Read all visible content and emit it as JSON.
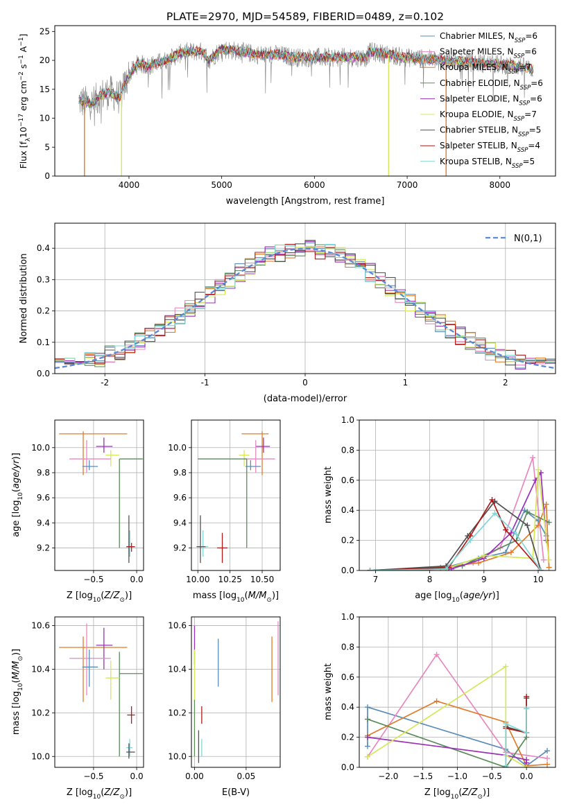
{
  "title": "PLATE=2970, MJD=54589, FIBERID=0489, z=0.102",
  "colors": {
    "Chabrier MILES": "#5b8db8",
    "Salpeter MILES": "#e887c0",
    "Kroupa MILES": "#e07b2a",
    "Chabrier ELODIE": "#5a8a5a",
    "Salpeter ELODIE": "#9a2fb8",
    "Kroupa ELODIE": "#d4e85a",
    "Chabrier STELIB": "#505050",
    "Salpeter STELIB": "#b01818",
    "Kroupa STELIB": "#7fd6d6",
    "normal": "#5a8ad6",
    "grid": "#b0b0b0"
  },
  "legend_spectrum": [
    {
      "model": "Chabrier MILES",
      "label": "Chabrier MILES, N",
      "sub": "SSP",
      "tail": "=6"
    },
    {
      "model": "Salpeter MILES",
      "label": "Salpeter MILES, N",
      "sub": "SSP",
      "tail": "=6"
    },
    {
      "model": "Kroupa MILES",
      "label": "Kroupa MILES, N",
      "sub": "SSP",
      "tail": "=7"
    },
    {
      "model": "Chabrier ELODIE",
      "label": "Chabrier ELODIE, N",
      "sub": "SSP",
      "tail": "=6"
    },
    {
      "model": "Salpeter ELODIE",
      "label": "Salpeter ELODIE, N",
      "sub": "SSP",
      "tail": "=6"
    },
    {
      "model": "Kroupa ELODIE",
      "label": "Kroupa ELODIE, N",
      "sub": "SSP",
      "tail": "=7"
    },
    {
      "model": "Chabrier STELIB",
      "label": "Chabrier STELIB, N",
      "sub": "SSP",
      "tail": "=5"
    },
    {
      "model": "Salpeter STELIB",
      "label": "Salpeter STELIB, N",
      "sub": "SSP",
      "tail": "=4"
    },
    {
      "model": "Kroupa STELIB",
      "label": "Kroupa STELIB, N",
      "sub": "SSP",
      "tail": "=5"
    }
  ],
  "chart_data": [
    {
      "id": "spectrum",
      "type": "line",
      "xlabel": "wavelength [Angstrom, rest frame]",
      "ylabel": "Flux [fλ10⁻¹⁷ erg cm⁻² s⁻¹ A⁻¹]",
      "xlim": [
        3200,
        8600
      ],
      "ylim": [
        0,
        26
      ],
      "xticks": [
        4000,
        5000,
        6000,
        7000,
        8000
      ],
      "yticks": [
        0,
        5,
        10,
        15,
        20,
        25
      ],
      "grid": false,
      "legend": "right",
      "continuum": [
        [
          3460,
          13
        ],
        [
          3600,
          12.5
        ],
        [
          3700,
          14
        ],
        [
          3800,
          14.5
        ],
        [
          3900,
          13.5
        ],
        [
          4000,
          17.5
        ],
        [
          4100,
          19.5
        ],
        [
          4200,
          19
        ],
        [
          4400,
          20
        ],
        [
          4600,
          21.5
        ],
        [
          4800,
          21.5
        ],
        [
          4860,
          20
        ],
        [
          5000,
          22
        ],
        [
          5200,
          21.5
        ],
        [
          5400,
          21
        ],
        [
          5600,
          21
        ],
        [
          5800,
          20.5
        ],
        [
          6000,
          20.5
        ],
        [
          6300,
          20.5
        ],
        [
          6560,
          20.5
        ],
        [
          6600,
          21.5
        ],
        [
          7000,
          20.5
        ],
        [
          7400,
          20
        ],
        [
          7800,
          19.5
        ],
        [
          8200,
          19
        ],
        [
          8360,
          18.5
        ]
      ],
      "drops": [
        {
          "model": "Kroupa MILES",
          "x": 3520
        },
        {
          "model": "Kroupa ELODIE",
          "x": 3920
        },
        {
          "model": "Kroupa ELODIE",
          "x": 6800
        },
        {
          "model": "Kroupa MILES",
          "x": 7420
        }
      ]
    },
    {
      "id": "residuals",
      "type": "histogram",
      "xlabel": "(data-model)/error",
      "ylabel": "Normed distribution",
      "xlim": [
        -2.5,
        2.5
      ],
      "ylim": [
        0,
        0.48
      ],
      "xticks": [
        -2,
        -1,
        0,
        1,
        2
      ],
      "yticks": [
        0.0,
        0.1,
        0.2,
        0.3,
        0.4
      ],
      "grid": true,
      "legend": "top-right",
      "legend_label": "N(0,1)",
      "bins": [
        -2.5,
        2.5,
        50
      ]
    },
    {
      "id": "age_vs_Z",
      "type": "scatter",
      "xlabel": "Z [log10(Z/Z☉)]",
      "ylabel": "age  [log10(age/yr)]",
      "xlim": [
        -0.95,
        0.08
      ],
      "ylim": [
        9.02,
        10.22
      ],
      "xticks": [
        -0.5,
        0.0
      ],
      "xticklabels": [
        "−0.5",
        "0.0"
      ],
      "yticks": [
        9.2,
        9.4,
        9.6,
        9.8,
        10.0
      ],
      "yticklabels": [
        "9.2",
        "9.4",
        "9.6",
        "9.8",
        "10.0"
      ],
      "grid": true,
      "points": [
        {
          "model": "Kroupa MILES",
          "x": -0.62,
          "xl": -0.9,
          "xh": -0.11,
          "y": 10.11,
          "yl": 9.78,
          "yh": 10.13
        },
        {
          "model": "Salpeter ELODIE",
          "x": -0.38,
          "xl": -0.47,
          "xh": -0.28,
          "y": 10.01,
          "yl": 9.96,
          "yh": 10.08
        },
        {
          "model": "Kroupa ELODIE",
          "x": -0.3,
          "xl": -0.36,
          "xh": -0.2,
          "y": 9.94,
          "yl": 9.85,
          "yh": 9.98
        },
        {
          "model": "Salpeter MILES",
          "x": -0.58,
          "xl": -0.78,
          "xh": -0.3,
          "y": 9.91,
          "yl": 9.8,
          "yh": 10.06
        },
        {
          "model": "Chabrier ELODIE",
          "x": -0.2,
          "xl": -0.2,
          "xh": 0.07,
          "y": 9.91,
          "yl": 9.2,
          "yh": 9.91
        },
        {
          "model": "Chabrier MILES",
          "x": -0.55,
          "xl": -0.63,
          "xh": -0.45,
          "y": 9.85,
          "yl": 9.82,
          "yh": 9.9
        },
        {
          "model": "Kroupa STELIB",
          "x": -0.08,
          "xl": -0.12,
          "xh": -0.05,
          "y": 9.21,
          "yl": 9.13,
          "yh": 9.34
        },
        {
          "model": "Chabrier STELIB",
          "x": -0.09,
          "xl": -0.12,
          "xh": -0.02,
          "y": 9.21,
          "yl": 9.08,
          "yh": 9.46
        },
        {
          "model": "Salpeter STELIB",
          "x": -0.06,
          "xl": -0.11,
          "xh": -0.02,
          "y": 9.21,
          "yl": 9.17,
          "yh": 9.24
        }
      ]
    },
    {
      "id": "age_vs_mass",
      "type": "scatter",
      "xlabel": "mass [log10(M/M☉)]",
      "ylabel": "",
      "xlim": [
        9.95,
        10.64
      ],
      "ylim": [
        9.02,
        10.22
      ],
      "xticks": [
        10.0,
        10.25,
        10.5
      ],
      "xticklabels": [
        "10.00",
        "10.25",
        "10.50"
      ],
      "yticks": [
        9.2,
        9.4,
        9.6,
        9.8,
        10.0
      ],
      "yticklabels": [
        "9.2",
        "9.4",
        "9.6",
        "9.8",
        "10.0"
      ],
      "grid": true,
      "points": [
        {
          "model": "Kroupa MILES",
          "x": 10.5,
          "xl": 10.34,
          "xh": 10.55,
          "y": 10.11,
          "yl": 9.78,
          "yh": 10.13
        },
        {
          "model": "Salpeter ELODIE",
          "x": 10.51,
          "xl": 10.45,
          "xh": 10.56,
          "y": 10.01,
          "yl": 9.96,
          "yh": 10.08
        },
        {
          "model": "Kroupa ELODIE",
          "x": 10.36,
          "xl": 10.32,
          "xh": 10.4,
          "y": 9.94,
          "yl": 9.85,
          "yh": 9.98
        },
        {
          "model": "Salpeter MILES",
          "x": 10.45,
          "xl": 10.36,
          "xh": 10.6,
          "y": 9.91,
          "yl": 9.8,
          "yh": 10.06
        },
        {
          "model": "Chabrier ELODIE",
          "x": 10.38,
          "xl": 10.0,
          "xh": 10.38,
          "y": 9.91,
          "yl": 9.2,
          "yh": 9.91
        },
        {
          "model": "Chabrier MILES",
          "x": 10.41,
          "xl": 10.37,
          "xh": 10.49,
          "y": 9.85,
          "yl": 9.82,
          "yh": 9.9
        },
        {
          "model": "Kroupa STELIB",
          "x": 10.04,
          "xl": 10.0,
          "xh": 10.08,
          "y": 9.21,
          "yl": 9.13,
          "yh": 9.34
        },
        {
          "model": "Chabrier STELIB",
          "x": 10.02,
          "xl": 9.99,
          "xh": 10.06,
          "y": 9.21,
          "yl": 9.08,
          "yh": 9.46
        },
        {
          "model": "Salpeter STELIB",
          "x": 10.19,
          "xl": 10.15,
          "xh": 10.23,
          "y": 9.2,
          "yl": 9.08,
          "yh": 9.32
        }
      ]
    },
    {
      "id": "weight_vs_age",
      "type": "line",
      "xlabel": "age  [log10(age/yr)]",
      "ylabel": "mass weight",
      "xlim": [
        6.7,
        10.32
      ],
      "ylim": [
        0,
        1.0
      ],
      "xticks": [
        7,
        8,
        9,
        10
      ],
      "yticks": [
        0.0,
        0.2,
        0.4,
        0.6,
        0.8,
        1.0
      ],
      "grid": true,
      "series": [
        {
          "model": "Chabrier MILES",
          "x": [
            6.9,
            8.3,
            8.9,
            9.4,
            9.75,
            10.0,
            10.15
          ],
          "y": [
            0.0,
            0.02,
            0.08,
            0.12,
            0.4,
            0.33,
            0.23
          ]
        },
        {
          "model": "Salpeter MILES",
          "x": [
            6.9,
            8.3,
            8.8,
            9.3,
            9.9,
            10.1
          ],
          "y": [
            0.0,
            0.01,
            0.05,
            0.15,
            0.75,
            0.07
          ]
        },
        {
          "model": "Kroupa MILES",
          "x": [
            6.9,
            8.2,
            8.9,
            9.5,
            10.0,
            10.15,
            10.2
          ],
          "y": [
            0.0,
            0.02,
            0.05,
            0.12,
            0.3,
            0.44,
            0.02
          ]
        },
        {
          "model": "Chabrier ELODIE",
          "x": [
            6.9,
            8.6,
            9.0,
            9.6,
            9.8,
            10.2
          ],
          "y": [
            0.0,
            0.03,
            0.1,
            0.2,
            0.39,
            0.32
          ]
        },
        {
          "model": "Salpeter ELODIE",
          "x": [
            6.9,
            8.4,
            9.0,
            9.5,
            9.95,
            10.05,
            10.15
          ],
          "y": [
            0.0,
            0.01,
            0.08,
            0.25,
            0.6,
            0.65,
            0.2
          ]
        },
        {
          "model": "Kroupa ELODIE",
          "x": [
            6.9,
            8.3,
            9.0,
            9.9,
            10.0,
            10.2
          ],
          "y": [
            0.0,
            0.01,
            0.1,
            0.08,
            0.67,
            0.07
          ]
        },
        {
          "model": "Chabrier STELIB",
          "x": [
            6.9,
            8.3,
            8.7,
            9.2,
            9.8,
            10.05
          ],
          "y": [
            0.0,
            0.03,
            0.23,
            0.46,
            0.3,
            0.0
          ]
        },
        {
          "model": "Salpeter STELIB",
          "x": [
            6.9,
            8.35,
            8.75,
            9.15,
            9.4,
            10.05
          ],
          "y": [
            0.0,
            0.02,
            0.23,
            0.47,
            0.27,
            0.0
          ]
        },
        {
          "model": "Kroupa STELIB",
          "x": [
            6.9,
            8.3,
            8.75,
            9.2,
            9.6,
            10.05
          ],
          "y": [
            0.0,
            0.01,
            0.2,
            0.38,
            0.24,
            0.0
          ]
        }
      ]
    },
    {
      "id": "mass_vs_Z",
      "type": "scatter",
      "xlabel": "Z [log10(Z/Z☉)]",
      "ylabel": "mass [log10(M/M☉)]",
      "xlim": [
        -0.95,
        0.08
      ],
      "ylim": [
        9.95,
        10.64
      ],
      "xticks": [
        -0.5,
        0.0
      ],
      "xticklabels": [
        "−0.5",
        "0.0"
      ],
      "yticks": [
        10.0,
        10.2,
        10.4,
        10.6
      ],
      "yticklabels": [
        "10.0",
        "10.2",
        "10.4",
        "10.6"
      ],
      "grid": true,
      "points": [
        {
          "model": "Kroupa MILES",
          "x": -0.62,
          "xl": -0.9,
          "xh": -0.11,
          "y": 10.5,
          "yl": 10.25,
          "yh": 10.55
        },
        {
          "model": "Salpeter ELODIE",
          "x": -0.38,
          "xl": -0.47,
          "xh": -0.28,
          "y": 10.51,
          "yl": 10.4,
          "yh": 10.59
        },
        {
          "model": "Salpeter MILES",
          "x": -0.58,
          "xl": -0.78,
          "xh": -0.3,
          "y": 10.45,
          "yl": 10.28,
          "yh": 10.61
        },
        {
          "model": "Chabrier MILES",
          "x": -0.55,
          "xl": -0.63,
          "xh": -0.45,
          "y": 10.41,
          "yl": 10.32,
          "yh": 10.49
        },
        {
          "model": "Chabrier ELODIE",
          "x": -0.2,
          "xl": -0.2,
          "xh": 0.07,
          "y": 10.38,
          "yl": 10.0,
          "yh": 10.48
        },
        {
          "model": "Kroupa ELODIE",
          "x": -0.3,
          "xl": -0.36,
          "xh": -0.2,
          "y": 10.36,
          "yl": 10.26,
          "yh": 10.44
        },
        {
          "model": "Salpeter STELIB",
          "x": -0.06,
          "xl": -0.11,
          "xh": -0.02,
          "y": 10.19,
          "yl": 10.15,
          "yh": 10.23
        },
        {
          "model": "Kroupa STELIB",
          "x": -0.08,
          "xl": -0.12,
          "xh": -0.05,
          "y": 10.04,
          "yl": 10.0,
          "yh": 10.08
        },
        {
          "model": "Chabrier STELIB",
          "x": -0.09,
          "xl": -0.12,
          "xh": -0.02,
          "y": 10.02,
          "yl": 9.99,
          "yh": 10.06
        }
      ]
    },
    {
      "id": "mass_vs_ebv",
      "type": "scatter",
      "xlabel": "E(B-V)",
      "ylabel": "",
      "xlim": [
        -0.003,
        0.083
      ],
      "ylim": [
        9.95,
        10.64
      ],
      "xticks": [
        0.0,
        0.05
      ],
      "xticklabels": [
        "0.00",
        "0.05"
      ],
      "yticks": [
        10.0,
        10.2,
        10.4,
        10.6
      ],
      "yticklabels": [
        "10.0",
        "10.2",
        "10.4",
        "10.6"
      ],
      "grid": true,
      "points": [
        {
          "model": "Salpeter MILES",
          "x": 0.081,
          "y": 10.45,
          "yl": 10.28,
          "yh": 10.62
        },
        {
          "model": "Kroupa MILES",
          "x": 0.075,
          "y": 10.42,
          "yl": 10.25,
          "yh": 10.55
        },
        {
          "model": "Chabrier MILES",
          "x": 0.023,
          "y": 10.41,
          "yl": 10.32,
          "yh": 10.54
        },
        {
          "model": "Salpeter ELODIE",
          "x": 0.0,
          "y": 10.51,
          "yl": 10.42,
          "yh": 10.6
        },
        {
          "model": "Kroupa ELODIE",
          "x": 0.0,
          "y": 10.36,
          "yl": 10.25,
          "yh": 10.49
        },
        {
          "model": "Chabrier ELODIE",
          "x": 0.0,
          "y": 10.2,
          "yl": 10.0,
          "yh": 10.26
        },
        {
          "model": "Salpeter STELIB",
          "x": 0.007,
          "y": 10.19,
          "yl": 10.15,
          "yh": 10.23
        },
        {
          "model": "Kroupa STELIB",
          "x": 0.007,
          "y": 10.04,
          "yl": 10.0,
          "yh": 10.08
        },
        {
          "model": "Chabrier STELIB",
          "x": 0.004,
          "y": 10.02,
          "yl": 9.97,
          "yh": 10.12
        }
      ]
    },
    {
      "id": "weight_vs_Z",
      "type": "line",
      "xlabel": "Z [log10(Z/Z☉)]",
      "ylabel": "mass weight",
      "xlim": [
        -2.42,
        0.42
      ],
      "ylim": [
        0,
        1.0
      ],
      "xticks": [
        -2.0,
        -1.5,
        -1.0,
        -0.5,
        0.0
      ],
      "xticklabels": [
        "−2.0",
        "−1.5",
        "−1.0",
        "−0.5",
        "0.0"
      ],
      "yticks": [
        0.0,
        0.2,
        0.4,
        0.6,
        0.8,
        1.0
      ],
      "grid": true,
      "series": [
        {
          "model": "Chabrier MILES",
          "x": [
            -2.3,
            -2.3,
            -0.3,
            0.0,
            0.3
          ],
          "y": [
            0.14,
            0.4,
            0.12,
            0.01,
            0.11
          ]
        },
        {
          "model": "Salpeter MILES",
          "x": [
            -2.3,
            -1.3,
            -0.3,
            0.3
          ],
          "y": [
            0.07,
            0.75,
            0.1,
            0.06
          ]
        },
        {
          "model": "Kroupa MILES",
          "x": [
            -2.3,
            -1.3,
            -0.3,
            0.0,
            0.3
          ],
          "y": [
            0.21,
            0.44,
            0.3,
            0.01,
            0.02
          ]
        },
        {
          "model": "Chabrier ELODIE",
          "x": [
            -2.3,
            -0.3,
            0.0,
            0.0
          ],
          "y": [
            0.32,
            0.0,
            0.2,
            0.39
          ]
        },
        {
          "model": "Salpeter ELODIE",
          "x": [
            -2.3,
            -0.3,
            0.0,
            0.0
          ],
          "y": [
            0.2,
            0.08,
            0.05,
            0.03
          ]
        },
        {
          "model": "Kroupa ELODIE",
          "x": [
            -2.3,
            -0.3,
            -0.3,
            0.0
          ],
          "y": [
            0.07,
            0.67,
            0.08,
            0.0
          ]
        },
        {
          "model": "Chabrier STELIB",
          "x": [
            -0.3,
            -0.3,
            0.0,
            0.0
          ],
          "y": [
            0.0,
            0.27,
            0.23,
            0.46
          ]
        },
        {
          "model": "Salpeter STELIB",
          "x": [
            -0.3,
            0.0,
            0.0
          ],
          "y": [
            0.26,
            0.23,
            0.47
          ]
        },
        {
          "model": "Kroupa STELIB",
          "x": [
            -0.3,
            -0.3,
            0.0,
            0.0
          ],
          "y": [
            0.01,
            0.29,
            0.23,
            0.39
          ]
        }
      ]
    }
  ]
}
